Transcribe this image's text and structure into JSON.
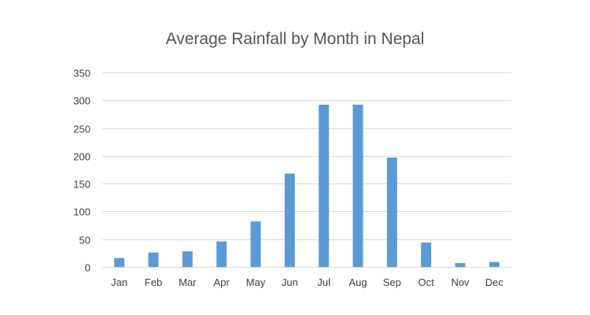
{
  "chart_data": {
    "type": "bar",
    "title": "Average Rainfall by Month in Nepal",
    "categories": [
      "Jan",
      "Feb",
      "Mar",
      "Apr",
      "May",
      "Jun",
      "Jul",
      "Aug",
      "Sep",
      "Oct",
      "Nov",
      "Dec"
    ],
    "values": [
      16,
      26,
      28,
      46,
      82,
      168,
      292,
      292,
      197,
      44,
      7,
      9
    ],
    "y_ticks": [
      0,
      50,
      100,
      150,
      200,
      250,
      300,
      350
    ],
    "xlabel": "",
    "ylabel": "",
    "ylim": [
      0,
      350
    ],
    "grid": true,
    "legend": "none",
    "bar_color": "#5b9bd5"
  }
}
